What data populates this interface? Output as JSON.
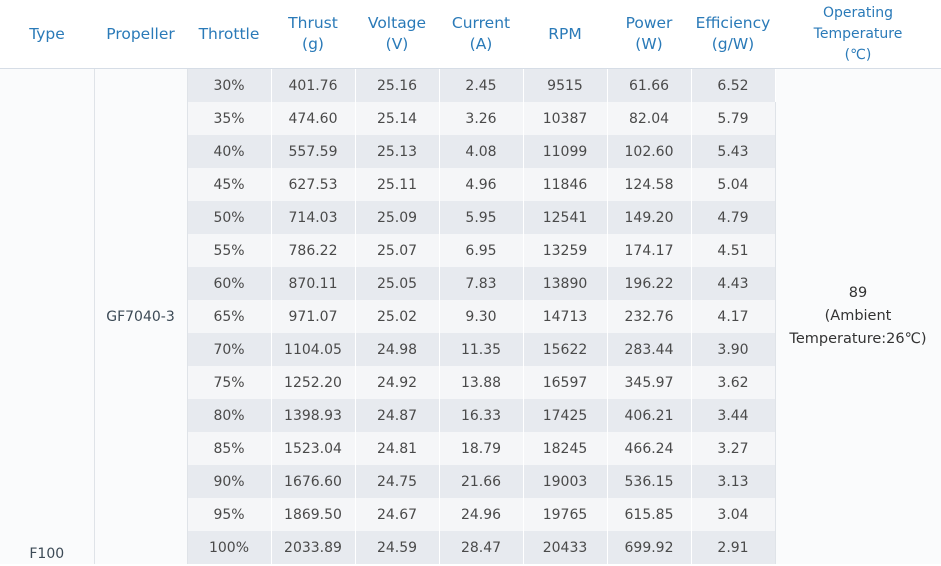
{
  "headers": {
    "type": "Type",
    "propeller": "Propeller",
    "throttle": "Throttle",
    "thrust": [
      "Thrust",
      "(g)"
    ],
    "voltage": [
      "Voltage",
      "(V)"
    ],
    "current": [
      "Current",
      "(A)"
    ],
    "rpm": "RPM",
    "power": [
      "Power",
      "(W)"
    ],
    "efficiency": [
      "Efficiency",
      "(g/W)"
    ],
    "temperature": [
      "Operating",
      "Temperature",
      "(℃)"
    ]
  },
  "type_value": "F100",
  "propeller_value": "GF7040-3",
  "temperature_value": [
    "89",
    "(Ambient",
    "Temperature:26℃)"
  ],
  "rows": [
    {
      "throttle": "30%",
      "thrust": "401.76",
      "voltage": "25.16",
      "current": "2.45",
      "rpm": "9515",
      "power": "61.66",
      "efficiency": "6.52"
    },
    {
      "throttle": "35%",
      "thrust": "474.60",
      "voltage": "25.14",
      "current": "3.26",
      "rpm": "10387",
      "power": "82.04",
      "efficiency": "5.79"
    },
    {
      "throttle": "40%",
      "thrust": "557.59",
      "voltage": "25.13",
      "current": "4.08",
      "rpm": "11099",
      "power": "102.60",
      "efficiency": "5.43"
    },
    {
      "throttle": "45%",
      "thrust": "627.53",
      "voltage": "25.11",
      "current": "4.96",
      "rpm": "11846",
      "power": "124.58",
      "efficiency": "5.04"
    },
    {
      "throttle": "50%",
      "thrust": "714.03",
      "voltage": "25.09",
      "current": "5.95",
      "rpm": "12541",
      "power": "149.20",
      "efficiency": "4.79"
    },
    {
      "throttle": "55%",
      "thrust": "786.22",
      "voltage": "25.07",
      "current": "6.95",
      "rpm": "13259",
      "power": "174.17",
      "efficiency": "4.51"
    },
    {
      "throttle": "60%",
      "thrust": "870.11",
      "voltage": "25.05",
      "current": "7.83",
      "rpm": "13890",
      "power": "196.22",
      "efficiency": "4.43"
    },
    {
      "throttle": "65%",
      "thrust": "971.07",
      "voltage": "25.02",
      "current": "9.30",
      "rpm": "14713",
      "power": "232.76",
      "efficiency": "4.17"
    },
    {
      "throttle": "70%",
      "thrust": "1104.05",
      "voltage": "24.98",
      "current": "11.35",
      "rpm": "15622",
      "power": "283.44",
      "efficiency": "3.90"
    },
    {
      "throttle": "75%",
      "thrust": "1252.20",
      "voltage": "24.92",
      "current": "13.88",
      "rpm": "16597",
      "power": "345.97",
      "efficiency": "3.62"
    },
    {
      "throttle": "80%",
      "thrust": "1398.93",
      "voltage": "24.87",
      "current": "16.33",
      "rpm": "17425",
      "power": "406.21",
      "efficiency": "3.44"
    },
    {
      "throttle": "85%",
      "thrust": "1523.04",
      "voltage": "24.81",
      "current": "18.79",
      "rpm": "18245",
      "power": "466.24",
      "efficiency": "3.27"
    },
    {
      "throttle": "90%",
      "thrust": "1676.60",
      "voltage": "24.75",
      "current": "21.66",
      "rpm": "19003",
      "power": "536.15",
      "efficiency": "3.13"
    },
    {
      "throttle": "95%",
      "thrust": "1869.50",
      "voltage": "24.67",
      "current": "24.96",
      "rpm": "19765",
      "power": "615.85",
      "efficiency": "3.04"
    },
    {
      "throttle": "100%",
      "thrust": "2033.89",
      "voltage": "24.59",
      "current": "28.47",
      "rpm": "20433",
      "power": "699.92",
      "efficiency": "2.91"
    }
  ],
  "colors": {
    "header_text": "#2a7ab8",
    "row_odd": "#e7eaef",
    "row_even": "#f5f6f8",
    "body_text": "#4a4a4a"
  }
}
